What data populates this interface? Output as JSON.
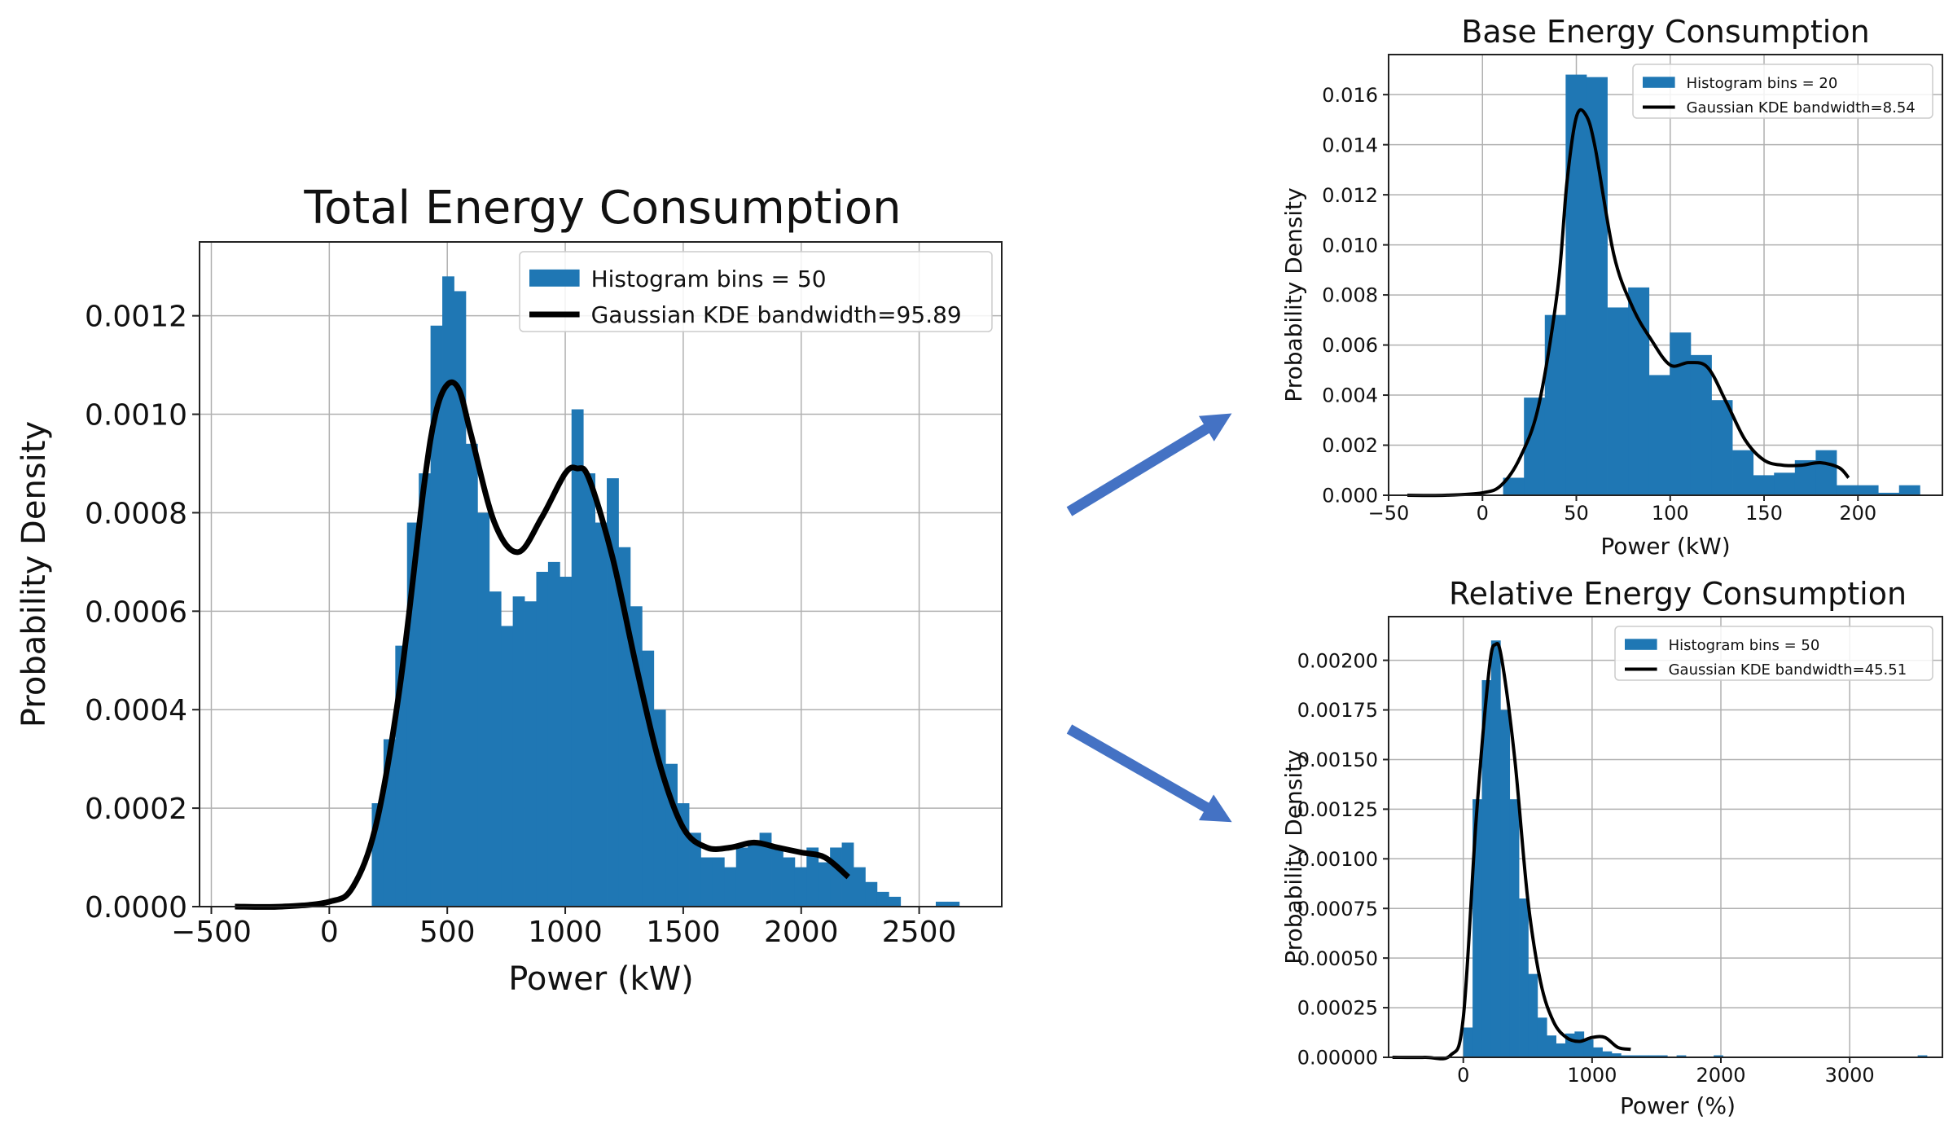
{
  "colors": {
    "bar": "#1f77b4",
    "kde": "#000000",
    "grid": "#b0b0b0",
    "arrow": "#4472c4"
  },
  "chart_data": [
    {
      "id": "total",
      "type": "bar",
      "title": "Total Energy Consumption",
      "xlabel": "Power (kW)",
      "ylabel": "Probability Density",
      "xlim": [
        -550,
        2850
      ],
      "ylim": [
        0,
        0.00135
      ],
      "xticks": [
        -500,
        0,
        500,
        1000,
        1500,
        2000,
        2500
      ],
      "xtick_labels": [
        "−500",
        "0",
        "500",
        "1000",
        "1500",
        "2000",
        "2500"
      ],
      "yticks": [
        0,
        0.0002,
        0.0004,
        0.0006,
        0.0008,
        0.001,
        0.0012
      ],
      "ytick_labels": [
        "0.0000",
        "0.0002",
        "0.0004",
        "0.0006",
        "0.0008",
        "0.0010",
        "0.0012"
      ],
      "grid": true,
      "legend_position": "top-right",
      "legend": [
        "Histogram bins = 50",
        "Gaussian KDE bandwidth=95.89"
      ],
      "hist": {
        "bin_start": 180,
        "bin_width": 49.8,
        "values": [
          0.00021,
          0.00034,
          0.00053,
          0.00078,
          0.00088,
          0.00118,
          0.00128,
          0.00125,
          0.00094,
          0.0008,
          0.00064,
          0.00057,
          0.00063,
          0.00062,
          0.00068,
          0.0007,
          0.00067,
          0.00101,
          0.00088,
          0.00078,
          0.00087,
          0.00073,
          0.00061,
          0.00052,
          0.0004,
          0.00029,
          0.00021,
          0.00015,
          0.0001,
          0.0001,
          8e-05,
          0.00012,
          0.00013,
          0.00015,
          0.00012,
          0.0001,
          8e-05,
          0.00012,
          9e-05,
          0.00012,
          0.00013,
          8e-05,
          5e-05,
          3e-05,
          2e-05,
          0.0,
          0.0,
          0.0,
          1e-05,
          1e-05
        ]
      },
      "kde": {
        "x": [
          -400,
          -200,
          0,
          100,
          200,
          300,
          400,
          450,
          500,
          550,
          600,
          700,
          800,
          900,
          1000,
          1050,
          1100,
          1200,
          1300,
          1400,
          1500,
          1600,
          1700,
          1800,
          1900,
          2000,
          2100,
          2200
        ],
        "y": [
          0.0,
          0.0,
          1e-05,
          4e-05,
          0.00017,
          0.00045,
          0.00085,
          0.001,
          0.00106,
          0.00105,
          0.00096,
          0.00078,
          0.00072,
          0.00079,
          0.00088,
          0.00089,
          0.00087,
          0.00071,
          0.00049,
          0.00029,
          0.00016,
          0.00012,
          0.00012,
          0.00013,
          0.00012,
          0.00011,
          0.0001,
          6e-05
        ]
      }
    },
    {
      "id": "base",
      "type": "bar",
      "title": "Base Energy Consumption",
      "xlabel": "Power (kW)",
      "ylabel": "Probability Density",
      "xlim": [
        -50,
        245
      ],
      "ylim": [
        0,
        0.0176
      ],
      "xticks": [
        -50,
        0,
        50,
        100,
        150,
        200
      ],
      "xtick_labels": [
        "−50",
        "0",
        "50",
        "100",
        "150",
        "200"
      ],
      "yticks": [
        0,
        0.002,
        0.004,
        0.006,
        0.008,
        0.01,
        0.012,
        0.014,
        0.016
      ],
      "ytick_labels": [
        "0.000",
        "0.002",
        "0.004",
        "0.006",
        "0.008",
        "0.010",
        "0.012",
        "0.014",
        "0.016"
      ],
      "grid": true,
      "legend_position": "top-right",
      "legend": [
        "Histogram bins = 20",
        "Gaussian KDE bandwidth=8.54"
      ],
      "hist": {
        "bin_start": 11,
        "bin_width": 11.1,
        "values": [
          0.0007,
          0.0039,
          0.0072,
          0.0168,
          0.0167,
          0.0075,
          0.0083,
          0.0048,
          0.0065,
          0.0056,
          0.0038,
          0.0018,
          0.0008,
          0.0009,
          0.0014,
          0.0018,
          0.0004,
          0.0004,
          0.0001,
          0.0004
        ]
      },
      "kde": {
        "x": [
          -40,
          -20,
          0,
          10,
          20,
          30,
          40,
          45,
          50,
          55,
          60,
          70,
          80,
          90,
          100,
          110,
          120,
          130,
          140,
          150,
          160,
          170,
          180,
          190,
          195
        ],
        "y": [
          0.0,
          0.0,
          0.0001,
          0.0004,
          0.0015,
          0.0036,
          0.0082,
          0.0125,
          0.0151,
          0.0152,
          0.0139,
          0.0096,
          0.0075,
          0.0062,
          0.0052,
          0.0053,
          0.0051,
          0.0037,
          0.0022,
          0.0014,
          0.0012,
          0.0012,
          0.0013,
          0.0011,
          0.0007
        ]
      }
    },
    {
      "id": "relative",
      "type": "bar",
      "title": "Relative Energy Consumption",
      "xlabel": "Power (%)",
      "ylabel": "Probability Density",
      "xlim": [
        -580,
        3720
      ],
      "ylim": [
        0,
        0.00222
      ],
      "xticks": [
        0,
        1000,
        2000,
        3000
      ],
      "xtick_labels": [
        "0",
        "1000",
        "2000",
        "3000"
      ],
      "yticks": [
        0,
        0.00025,
        0.0005,
        0.00075,
        0.001,
        0.00125,
        0.0015,
        0.00175,
        0.002
      ],
      "ytick_labels": [
        "0.00000",
        "0.00025",
        "0.00050",
        "0.00075",
        "0.00100",
        "0.00125",
        "0.00150",
        "0.00175",
        "0.00200"
      ],
      "grid": true,
      "legend_position": "top-right",
      "legend": [
        "Histogram bins = 50",
        "Gaussian KDE bandwidth=45.51"
      ],
      "hist": {
        "bin_start": 0,
        "bin_width": 72,
        "values": [
          0.00015,
          0.0013,
          0.0019,
          0.0021,
          0.00175,
          0.0013,
          0.0008,
          0.00042,
          0.0002,
          0.00011,
          7e-05,
          0.00012,
          0.00013,
          9e-05,
          5e-05,
          3e-05,
          2e-05,
          1e-05,
          1e-05,
          1e-05,
          1e-05,
          1e-05,
          0.0,
          1e-05,
          0.0,
          0.0,
          0.0,
          1e-05,
          0.0,
          0.0,
          0.0,
          0.0,
          0.0,
          0.0,
          0.0,
          0.0,
          0.0,
          0.0,
          0.0,
          0.0,
          0.0,
          0.0,
          0.0,
          0.0,
          0.0,
          0.0,
          0.0,
          0.0,
          0.0,
          1e-05
        ]
      },
      "kde": {
        "x": [
          -550,
          -300,
          -100,
          0,
          100,
          200,
          250,
          300,
          400,
          500,
          600,
          700,
          800,
          900,
          1000,
          1100,
          1200,
          1300
        ],
        "y": [
          0.0,
          0.0,
          1e-05,
          0.0002,
          0.0012,
          0.00195,
          0.00208,
          0.002,
          0.0015,
          0.0008,
          0.00038,
          0.00018,
          0.0001,
          8e-05,
          0.0001,
          0.0001,
          5e-05,
          4e-05
        ]
      }
    }
  ]
}
